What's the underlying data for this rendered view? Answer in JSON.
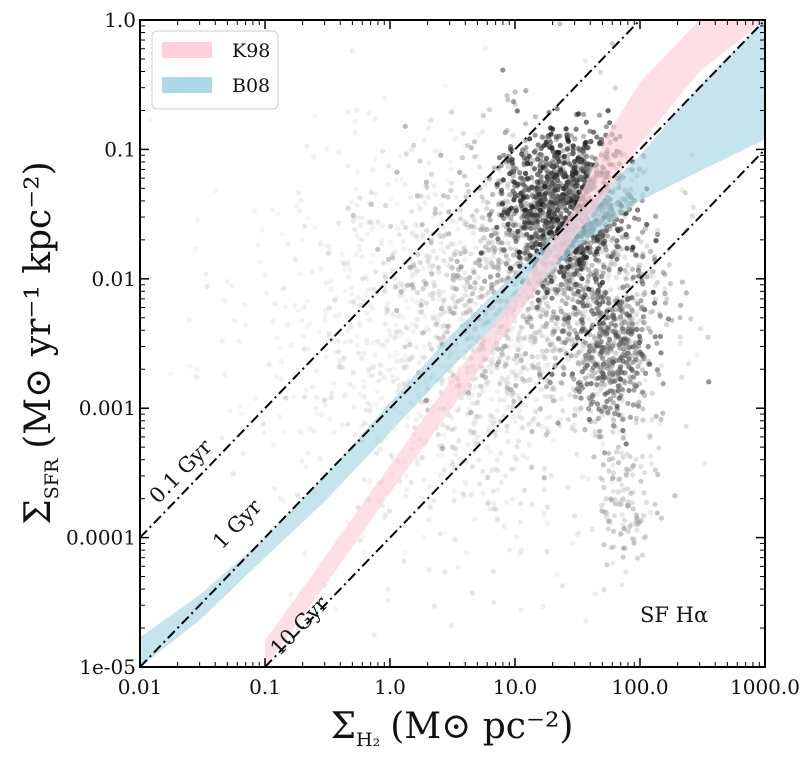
{
  "chart_data": {
    "type": "scatter",
    "x_scale": "log",
    "y_scale": "log",
    "xlim": [
      0.01,
      1000.0
    ],
    "ylim": [
      1e-05,
      1.0
    ],
    "xticks": [
      0.01,
      0.1,
      1.0,
      10.0,
      100.0,
      1000.0
    ],
    "xtick_labels": [
      "0.01",
      "0.1",
      "1.0",
      "10.0",
      "100.0",
      "1000.0"
    ],
    "yticks": [
      1e-05,
      0.0001,
      0.001,
      0.01,
      0.1,
      1.0
    ],
    "ytick_labels": [
      "1e-05",
      "0.0001",
      "0.001",
      "0.01",
      "0.1",
      "1.0"
    ],
    "xlabel": {
      "symbol": "Σ",
      "subscript": "H₂",
      "units": "(M⊙ pc⁻²)"
    },
    "ylabel": {
      "symbol": "Σ",
      "subscript": "SFR",
      "units": "(M⊙ yr⁻¹ kpc⁻²)"
    },
    "annotation": "SF Hα",
    "legend": {
      "placement": "top-left",
      "entries": [
        {
          "label": "K98",
          "color": "#ffd1dc"
        },
        {
          "label": "B08",
          "color": "#add8e6"
        }
      ]
    },
    "reference_lines": [
      {
        "label": "0.1 Gyr",
        "depletion_time_gyr": 0.1,
        "x": [
          0.01,
          1000.0
        ],
        "y": [
          0.0001,
          10.0
        ]
      },
      {
        "label": "1 Gyr",
        "depletion_time_gyr": 1,
        "x": [
          0.01,
          1000.0
        ],
        "y": [
          1e-05,
          1.0
        ]
      },
      {
        "label": "10 Gyr",
        "depletion_time_gyr": 10,
        "x": [
          0.1,
          1000.0
        ],
        "y": [
          1e-05,
          0.1
        ]
      }
    ],
    "bands": [
      {
        "name": "K98",
        "color": "#ffd1dc",
        "x": [
          0.1,
          0.3,
          1.0,
          3.0,
          10.0,
          30.0,
          55.0,
          100.0,
          300.0,
          1000.0
        ],
        "y_low": [
          1e-05,
          4.2e-05,
          0.00022,
          0.00095,
          0.0048,
          0.021,
          0.046,
          0.11,
          0.4,
          1.0
        ],
        "y_high": [
          1.6e-05,
          7e-05,
          0.00036,
          0.0016,
          0.0075,
          0.035,
          0.13,
          0.33,
          1.0,
          1.0
        ]
      },
      {
        "name": "B08",
        "color": "#add8e6",
        "x": [
          0.01,
          0.03,
          0.1,
          0.3,
          1.0,
          3.0,
          10.0,
          30.0,
          100.0,
          300.0,
          1000.0
        ],
        "y_low": [
          1e-05,
          2.3e-05,
          7e-05,
          0.00019,
          0.00065,
          0.002,
          0.006,
          0.017,
          0.04,
          0.068,
          0.12
        ],
        "y_high": [
          1.7e-05,
          3.6e-05,
          0.0001,
          0.0003,
          0.0011,
          0.0036,
          0.011,
          0.03,
          0.09,
          0.31,
          1.0
        ]
      }
    ],
    "point_clouds": [
      {
        "center_x": 25.0,
        "center_y": 0.035,
        "spread_logx": 0.25,
        "spread_logy": 0.3,
        "n": 1200,
        "darkness": 0.85
      },
      {
        "center_x": 60.0,
        "center_y": 0.003,
        "spread_logx": 0.18,
        "spread_logy": 0.3,
        "n": 450,
        "darkness": 0.7
      },
      {
        "center_x": 15.0,
        "center_y": 0.01,
        "spread_logx": 0.5,
        "spread_logy": 0.55,
        "n": 900,
        "darkness": 0.45
      },
      {
        "center_x": 5.0,
        "center_y": 0.002,
        "spread_logx": 0.65,
        "spread_logy": 0.7,
        "n": 700,
        "darkness": 0.22
      },
      {
        "center_x": 1.0,
        "center_y": 0.005,
        "spread_logx": 0.75,
        "spread_logy": 0.75,
        "n": 550,
        "darkness": 0.12
      },
      {
        "center_x": 80.0,
        "center_y": 0.0002,
        "spread_logx": 0.12,
        "spread_logy": 0.35,
        "n": 120,
        "darkness": 0.4
      }
    ]
  }
}
